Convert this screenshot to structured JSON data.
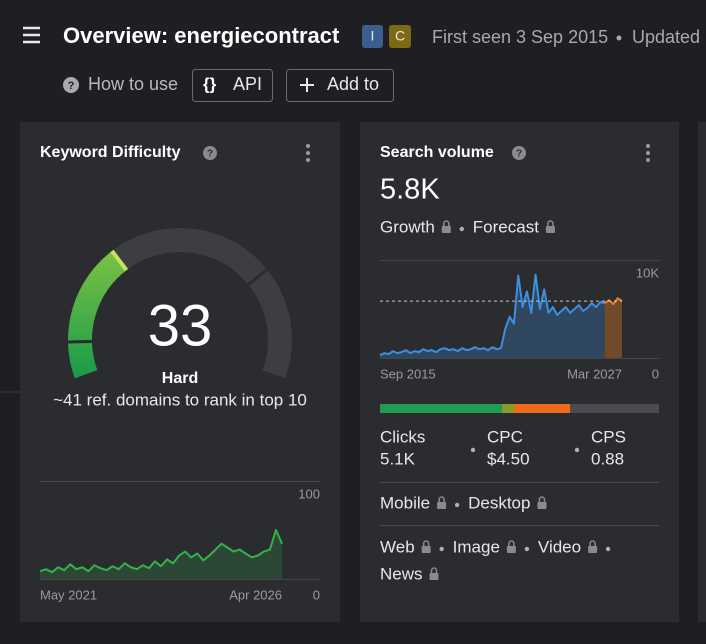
{
  "header": {
    "title": "Overview: energiecontract",
    "badges": [
      "I",
      "C"
    ],
    "first_seen": "First seen 3 Sep 2015",
    "updated": "Updated",
    "how_to_use": "How to use",
    "buttons": [
      "API",
      "Add to"
    ]
  },
  "kd_card": {
    "title": "Keyword Difficulty",
    "value": 33,
    "label": "Hard",
    "note": "~41 ref. domains to rank in top 10",
    "history": {
      "values": [
        8,
        10,
        7,
        12,
        9,
        15,
        10,
        12,
        8,
        14,
        11,
        9,
        13,
        10,
        16,
        12,
        10,
        14,
        11,
        18,
        13,
        20,
        16,
        24,
        28,
        22,
        26,
        19,
        24,
        30,
        36,
        32,
        28,
        30,
        26,
        22,
        24,
        28,
        30,
        50,
        36
      ],
      "ylim": [
        0,
        100
      ],
      "yticks": [
        0,
        100
      ],
      "x_labels": [
        "May 2021",
        "Apr 2026"
      ]
    }
  },
  "volume_card": {
    "title": "Search volume",
    "volume": {
      "value": 5800,
      "label": "5.8K"
    },
    "growth": "Growth",
    "forecast": "Forecast",
    "chart": {
      "values": [
        300,
        500,
        400,
        700,
        500,
        600,
        800,
        500,
        700,
        600,
        900,
        700,
        800,
        600,
        900,
        1000,
        800,
        900,
        700,
        1000,
        800,
        900,
        1100,
        900,
        1000,
        800,
        1100,
        900,
        1000,
        3000,
        4200,
        3500,
        8400,
        5200,
        6800,
        4600,
        8500,
        5000,
        7000,
        4600,
        5200,
        4400,
        4800,
        5200,
        4600,
        5000,
        5400,
        4800,
        5100,
        5600,
        5200,
        5700,
        5600,
        null,
        null,
        null,
        null
      ],
      "forecast_values": [
        null,
        null,
        null,
        null,
        null,
        null,
        null,
        null,
        null,
        null,
        null,
        null,
        null,
        null,
        null,
        null,
        null,
        null,
        null,
        null,
        null,
        null,
        null,
        null,
        null,
        null,
        null,
        null,
        null,
        null,
        null,
        null,
        null,
        null,
        null,
        null,
        null,
        null,
        null,
        null,
        null,
        null,
        null,
        null,
        null,
        null,
        null,
        null,
        null,
        null,
        null,
        null,
        5600,
        5900,
        5500,
        6100,
        5800
      ],
      "ylim": [
        0,
        10000
      ],
      "yticks": [
        0,
        {
          "value": 10000,
          "label": "10K"
        }
      ],
      "x_labels": [
        "Sep 2015",
        "Mar 2027"
      ]
    },
    "metrics": [
      {
        "label": "Clicks",
        "value": "5.1K"
      },
      {
        "label": "CPC",
        "value": "$4.50"
      },
      {
        "label": "CPS",
        "value": "0.88"
      }
    ],
    "devices": [
      "Mobile",
      "Desktop"
    ],
    "serp": [
      "Web",
      "Image",
      "Video",
      "News"
    ]
  }
}
